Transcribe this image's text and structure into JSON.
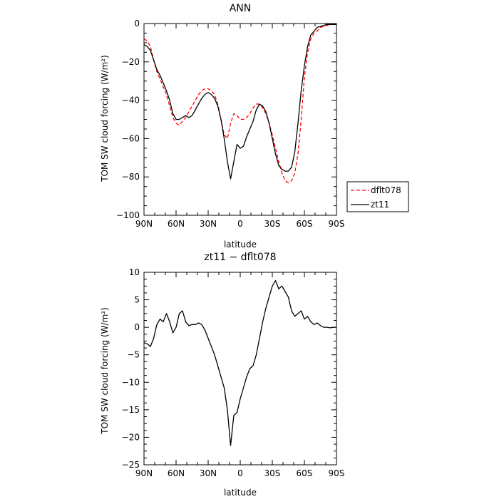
{
  "chart_data": [
    {
      "type": "line",
      "title": "ANN",
      "xlabel": "latitude",
      "ylabel": "TOM SW cloud forcing (W/m²)",
      "xlim": [
        90,
        -90
      ],
      "ylim": [
        -100,
        0
      ],
      "xticks": [
        90,
        60,
        30,
        0,
        -30,
        -60,
        -90
      ],
      "xtick_labels": [
        "90N",
        "60N",
        "30N",
        "0",
        "30S",
        "60S",
        "90S"
      ],
      "yticks": [
        0,
        -20,
        -40,
        -60,
        -80,
        -100
      ],
      "ytick_labels": [
        "0",
        "−20",
        "−40",
        "−60",
        "−80",
        "−100"
      ],
      "legend_position": "right-outside",
      "series": [
        {
          "name": "dflt078",
          "color": "#ff0000",
          "style": "dashed",
          "x": [
            90,
            87,
            84,
            81,
            78,
            75,
            72,
            69,
            66,
            63,
            60,
            57,
            54,
            51,
            48,
            45,
            42,
            39,
            36,
            33,
            30,
            27,
            24,
            21,
            18,
            15,
            12,
            9,
            6,
            3,
            0,
            -3,
            -6,
            -9,
            -12,
            -15,
            -18,
            -21,
            -24,
            -27,
            -30,
            -33,
            -36,
            -39,
            -42,
            -45,
            -48,
            -51,
            -54,
            -57,
            -60,
            -63,
            -66,
            -69,
            -72,
            -75,
            -78,
            -81,
            -84,
            -87,
            -90
          ],
          "y": [
            -8,
            -9,
            -12,
            -19,
            -25,
            -29,
            -33,
            -37,
            -43,
            -49,
            -52,
            -53,
            -51,
            -49,
            -46,
            -43,
            -40,
            -37,
            -35,
            -34,
            -34,
            -35,
            -37,
            -42,
            -50,
            -58,
            -60,
            -52,
            -47,
            -48,
            -50,
            -50,
            -49,
            -47,
            -44,
            -42,
            -42,
            -44,
            -47,
            -52,
            -58,
            -65,
            -72,
            -78,
            -82,
            -83,
            -82,
            -78,
            -68,
            -50,
            -28,
            -15,
            -8,
            -5,
            -4,
            -2,
            -1.5,
            -1,
            -0.5,
            -0.5,
            -0.5
          ]
        },
        {
          "name": "zt11",
          "color": "#000000",
          "style": "solid",
          "x": [
            90,
            87,
            84,
            81,
            78,
            75,
            72,
            69,
            66,
            63,
            60,
            57,
            54,
            51,
            48,
            45,
            42,
            39,
            36,
            33,
            30,
            27,
            24,
            21,
            18,
            15,
            12,
            9,
            6,
            3,
            0,
            -3,
            -6,
            -9,
            -12,
            -15,
            -18,
            -21,
            -24,
            -27,
            -30,
            -33,
            -36,
            -39,
            -42,
            -45,
            -48,
            -51,
            -54,
            -57,
            -60,
            -63,
            -66,
            -69,
            -72,
            -75,
            -78,
            -81,
            -84,
            -87,
            -90
          ],
          "y": [
            -11,
            -12,
            -14,
            -19,
            -24,
            -27,
            -31,
            -35,
            -40,
            -47,
            -50,
            -50,
            -49,
            -48,
            -49,
            -48,
            -45,
            -42,
            -39,
            -37,
            -36,
            -37,
            -39,
            -43,
            -50,
            -60,
            -72,
            -81,
            -72,
            -63,
            -65,
            -64,
            -59,
            -55,
            -51,
            -45,
            -42,
            -43,
            -46,
            -52,
            -60,
            -68,
            -74,
            -76,
            -77,
            -77,
            -75,
            -67,
            -52,
            -35,
            -22,
            -12,
            -6,
            -4,
            -2,
            -1.5,
            -1,
            -0.5,
            -0.5,
            -0.5,
            -0.5
          ]
        }
      ]
    },
    {
      "type": "line",
      "title": "zt11 − dflt078",
      "xlabel": "latitude",
      "ylabel": "TOM SW cloud forcing (W/m²)",
      "xlim": [
        90,
        -90
      ],
      "ylim": [
        -25,
        10
      ],
      "xticks": [
        90,
        60,
        30,
        0,
        -30,
        -60,
        -90
      ],
      "xtick_labels": [
        "90N",
        "60N",
        "30N",
        "0",
        "30S",
        "60S",
        "90S"
      ],
      "yticks": [
        10,
        5,
        0,
        -5,
        -10,
        -15,
        -20,
        -25
      ],
      "ytick_labels": [
        "10",
        "5",
        "0",
        "−5",
        "−10",
        "−15",
        "−20",
        "−25"
      ],
      "series": [
        {
          "color": "#000000",
          "style": "solid",
          "x": [
            90,
            87,
            84,
            81,
            78,
            75,
            72,
            69,
            66,
            63,
            60,
            57,
            54,
            51,
            48,
            45,
            42,
            39,
            36,
            33,
            30,
            27,
            24,
            21,
            18,
            15,
            12,
            9,
            6,
            3,
            0,
            -3,
            -6,
            -9,
            -12,
            -15,
            -18,
            -21,
            -24,
            -27,
            -30,
            -33,
            -36,
            -39,
            -42,
            -45,
            -48,
            -51,
            -54,
            -57,
            -60,
            -63,
            -66,
            -69,
            -72,
            -75,
            -78,
            -81,
            -84,
            -87,
            -90
          ],
          "y": [
            -2.8,
            -3,
            -3.5,
            -2,
            0.5,
            1.5,
            1,
            2.5,
            1,
            -1,
            0,
            2.5,
            3,
            1,
            0.3,
            0.5,
            0.5,
            0.8,
            0.5,
            -0.5,
            -2,
            -3.5,
            -5,
            -7,
            -9,
            -11,
            -15,
            -21.5,
            -16,
            -15.5,
            -13,
            -11,
            -9,
            -7.5,
            -7,
            -5,
            -2,
            1,
            3.5,
            5.5,
            7.5,
            8.5,
            7,
            7.5,
            6.5,
            5.5,
            3,
            2,
            2.5,
            3,
            1.5,
            2,
            1,
            0.5,
            0.8,
            0.3,
            0,
            0,
            -0.1,
            0,
            0
          ]
        }
      ]
    }
  ],
  "legend": {
    "items": [
      {
        "label": "dflt078",
        "color": "#ff0000",
        "style": "dashed"
      },
      {
        "label": "zt11",
        "color": "#000000",
        "style": "solid"
      }
    ]
  }
}
